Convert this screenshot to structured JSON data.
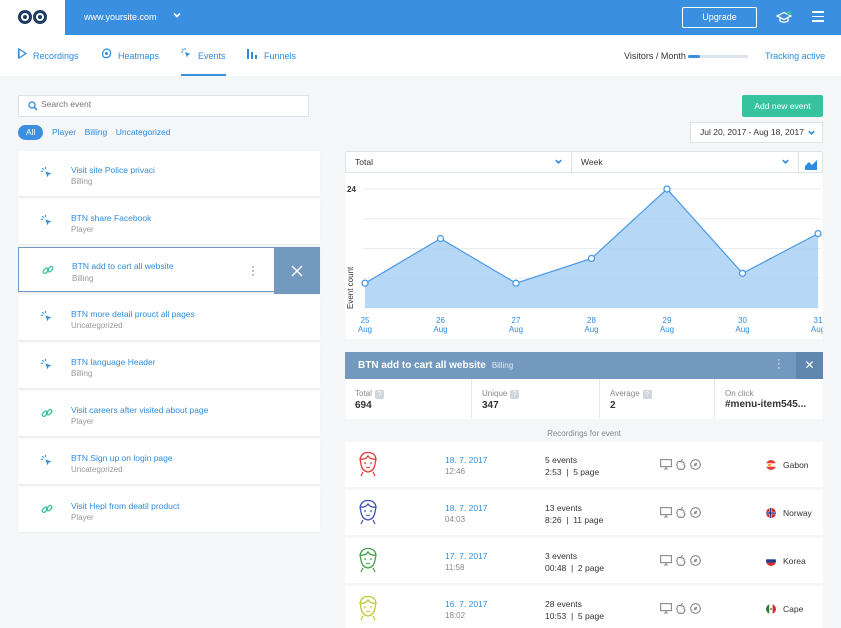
{
  "header": {
    "site": "www.yoursite.com",
    "upgrade_label": "Upgrade"
  },
  "nav": {
    "tabs": [
      {
        "label": "Recordings",
        "icon": "play-icon"
      },
      {
        "label": "Heatmaps",
        "icon": "heatmap-icon"
      },
      {
        "label": "Events",
        "icon": "cursor-click-icon",
        "active": true
      },
      {
        "label": "Funnels",
        "icon": "funnel-bars-icon"
      }
    ],
    "visitors_label": "Visitors / Month",
    "visitors_fill": 0.2,
    "tracking_label": "Tracking active"
  },
  "search": {
    "placeholder": "Search event"
  },
  "filters": [
    "All",
    "Player",
    "Billing",
    "Uncategorized"
  ],
  "events": [
    {
      "name": "Visit site Police privaci",
      "category": "Billing",
      "icon": "cursor-click-icon"
    },
    {
      "name": "BTN share Facebook",
      "category": "Player",
      "icon": "cursor-click-icon"
    },
    {
      "name": "BTN add to cart all website",
      "category": "Billing",
      "icon": "link-icon",
      "selected": true
    },
    {
      "name": "BTN more detail prouct all pages",
      "category": "Uncategorized",
      "icon": "cursor-click-icon"
    },
    {
      "name": "BTN language Header",
      "category": "Billing",
      "icon": "cursor-click-icon"
    },
    {
      "name": "Visit careers after visited about page",
      "category": "Player",
      "icon": "link-icon"
    },
    {
      "name": "BTN Sign up on login page",
      "category": "Uncategorized",
      "icon": "cursor-click-icon"
    },
    {
      "name": "Visit Hepl from deatil product",
      "category": "Player",
      "icon": "link-icon"
    }
  ],
  "add_event_label": "Add new event",
  "date_range": "Jul 20, 2017 - Aug 18, 2017",
  "chart_controls": {
    "metric": "Total",
    "period": "Week"
  },
  "chart_data": {
    "type": "area",
    "x": [
      "25 Aug",
      "26 Aug",
      "27 Aug",
      "28 Aug",
      "29 Aug",
      "30 Aug",
      "31 Aug"
    ],
    "x_top": [
      "25",
      "26",
      "27",
      "28",
      "29",
      "30",
      "31"
    ],
    "x_bottom": [
      "Aug",
      "Aug",
      "Aug",
      "Aug",
      "Aug",
      "Aug",
      "Aug"
    ],
    "values": [
      5,
      14,
      5,
      10,
      24,
      7,
      15
    ],
    "ylabel": "Event count",
    "ytick": "24",
    "ylim": [
      0,
      24
    ],
    "grid": true,
    "color": "#4a9ae6",
    "fill": "#a9d0f5"
  },
  "detail": {
    "name": "BTN add to cart all website",
    "category": "Billing",
    "stats": [
      {
        "label": "Total",
        "value": "694",
        "help": "?"
      },
      {
        "label": "Unique",
        "value": "347",
        "help": "?"
      },
      {
        "label": "Average",
        "value": "2",
        "help": "?"
      },
      {
        "label": "On click",
        "value": "#menu-item545..."
      }
    ],
    "recordings_title": "Recordings for event"
  },
  "recordings": [
    {
      "date": "18. 7. 2017",
      "time": "12:46",
      "events": "5 events",
      "duration": "2:53  |  5 page",
      "country": "Gabon",
      "avatar_color": "#e53935",
      "flag": "gabon"
    },
    {
      "date": "18. 7. 2017",
      "time": "04:03",
      "events": "13 events",
      "duration": "8:26  |  11 page",
      "country": "Norway",
      "avatar_color": "#3f51b5",
      "flag": "norway"
    },
    {
      "date": "17. 7. 2017",
      "time": "11:58",
      "events": "3 events",
      "duration": "00:48  |  2 page",
      "country": "Korea",
      "avatar_color": "#43a047",
      "flag": "korea"
    },
    {
      "date": "16. 7. 2017",
      "time": "18:02",
      "events": "28 events",
      "duration": "10:53  |  5 page",
      "country": "Cape",
      "avatar_color": "#c0ca33",
      "flag": "cape"
    }
  ]
}
